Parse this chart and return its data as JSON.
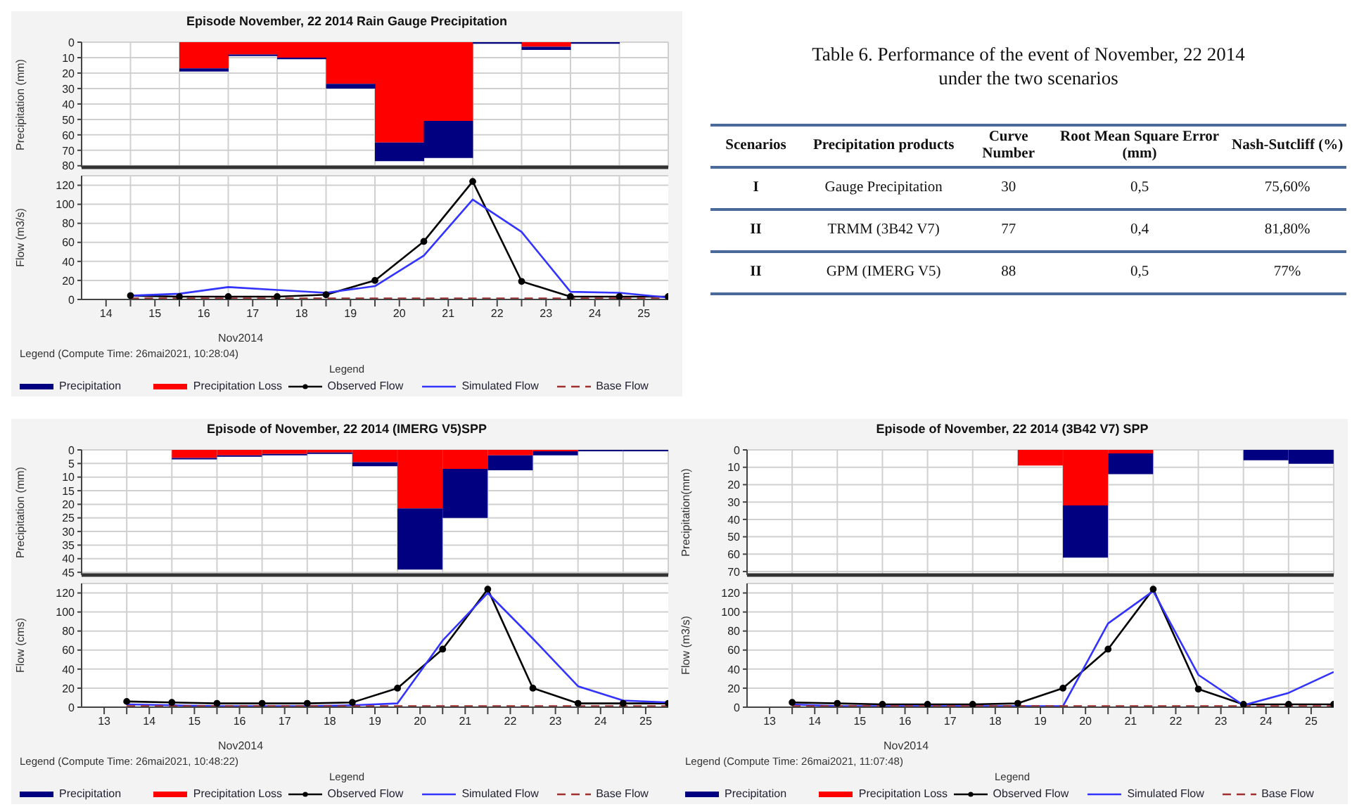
{
  "chart_data": [
    {
      "type": "bar",
      "title": "Episode November, 22 2014 Rain Gauge Precipitation",
      "ylabel": "Precipitation (mm)",
      "categories": [
        "14",
        "15",
        "16",
        "17",
        "18",
        "19",
        "20",
        "21",
        "22",
        "23",
        "24",
        "25"
      ],
      "stacked": true,
      "ylim": [
        81,
        0
      ],
      "yticks": [
        0,
        10,
        20,
        30,
        40,
        50,
        60,
        70,
        80
      ],
      "grid": true,
      "tick_labels": "y",
      "legend": "bottom",
      "series": [
        {
          "name": "Precipitation Loss",
          "color": "#ff0000",
          "values": [
            0,
            0,
            17,
            8,
            10,
            27,
            65,
            51,
            0,
            3,
            0,
            0
          ]
        },
        {
          "name": "Precipitation",
          "color": "#000080",
          "values": [
            0,
            0,
            2,
            1,
            1,
            3,
            12,
            24,
            1,
            2,
            1,
            0
          ]
        }
      ]
    },
    {
      "type": "line",
      "xlabel": "Nov2014",
      "ylabel": "Flow (m3/s)",
      "x": [
        14.5,
        15.5,
        16.5,
        17.5,
        18.5,
        19.5,
        20.5,
        21.5,
        22.5,
        23.5,
        24.5,
        25.5
      ],
      "xlim": [
        13.5,
        25.5
      ],
      "xticks": [
        14,
        {
          "value": 14.5,
          "label": null
        },
        15,
        {
          "value": 15.5,
          "label": null
        },
        16,
        {
          "value": 16.5,
          "label": null
        },
        17,
        {
          "value": 17.5,
          "label": null
        },
        18,
        {
          "value": 18.5,
          "label": null
        },
        19,
        {
          "value": 19.5,
          "label": null
        },
        20,
        {
          "value": 20.5,
          "label": null
        },
        21,
        {
          "value": 21.5,
          "label": null
        },
        22,
        {
          "value": 22.5,
          "label": null
        },
        23,
        {
          "value": 23.5,
          "label": null
        },
        24,
        {
          "value": 24.5,
          "label": null
        },
        25
      ],
      "ylim": [
        0,
        130
      ],
      "yticks": [
        0,
        20,
        40,
        60,
        80,
        100,
        120
      ],
      "grid": true,
      "legend": "bottom",
      "legend_title": "Legend",
      "annotations": [
        "Legend (Compute Time: 26mai2021, 10:28:04)"
      ],
      "series": [
        {
          "name": "Observed Flow",
          "color": "#000000",
          "marker": "circle",
          "values": [
            4,
            3,
            3,
            3,
            5,
            20,
            61,
            124,
            19,
            3,
            3,
            3
          ]
        },
        {
          "name": "Simulated Flow",
          "color": "#3333ff",
          "marker": "none",
          "values": [
            4,
            6,
            13,
            10,
            7,
            14,
            46,
            105,
            71,
            8,
            7,
            2
          ]
        },
        {
          "name": "Base Flow",
          "color": "#a03030",
          "marker": "none",
          "line_style": "dashed",
          "values": [
            1,
            1,
            1,
            1,
            1,
            1,
            1,
            1,
            1,
            1,
            1,
            1
          ]
        }
      ]
    },
    {
      "type": "other",
      "title": "Table 6. Performance of the event of November, 22 2014 under the two scenarios",
      "annotations": [
        "Scenarios",
        "Precipitation products",
        "Curve Number",
        "Root Mean Square Error (mm)",
        "Nash-Sutcliff (%)",
        "I",
        "Gauge Precipitation",
        "30",
        "0,5",
        "75,60%",
        "II",
        "TRMM (3B42 V7)",
        "77",
        "0,4",
        "81,80%",
        "II",
        "GPM (IMERG V5)",
        "88",
        "0,5",
        "77%"
      ]
    },
    {
      "type": "bar",
      "title": "Episode of November, 22 2014 (IMERG V5)SPP",
      "ylabel": "Precipitation (mm)",
      "categories": [
        "13",
        "14",
        "15",
        "16",
        "17",
        "18",
        "19",
        "20",
        "21",
        "22",
        "23",
        "24",
        "25"
      ],
      "stacked": true,
      "ylim": [
        46,
        0
      ],
      "yticks": [
        0,
        5,
        10,
        15,
        20,
        25,
        30,
        35,
        40,
        45
      ],
      "grid": true,
      "tick_labels": "y",
      "legend": "bottom",
      "series": [
        {
          "name": "Precipitation Loss",
          "color": "#ff0000",
          "values": [
            0,
            0,
            3,
            2,
            1.5,
            1,
            4.5,
            21.5,
            7,
            2,
            0.5,
            0,
            0
          ]
        },
        {
          "name": "Precipitation",
          "color": "#000080",
          "values": [
            0,
            0,
            0.5,
            0.5,
            0.5,
            0.5,
            1.5,
            22.5,
            18,
            5.5,
            1.5,
            0.5,
            0.5
          ]
        }
      ]
    },
    {
      "type": "line",
      "xlabel": "Nov2014",
      "ylabel": "Flow (cms)",
      "x": [
        13.5,
        14.5,
        15.5,
        16.5,
        17.5,
        18.5,
        19.5,
        20.5,
        21.5,
        22.5,
        23.5,
        24.5,
        25.5
      ],
      "xlim": [
        12.5,
        25.5
      ],
      "xticks": [
        13,
        {
          "value": 13.5,
          "label": null
        },
        14,
        {
          "value": 14.5,
          "label": null
        },
        15,
        {
          "value": 15.5,
          "label": null
        },
        16,
        {
          "value": 16.5,
          "label": null
        },
        17,
        {
          "value": 17.5,
          "label": null
        },
        18,
        {
          "value": 18.5,
          "label": null
        },
        19,
        {
          "value": 19.5,
          "label": null
        },
        20,
        {
          "value": 20.5,
          "label": null
        },
        21,
        {
          "value": 21.5,
          "label": null
        },
        22,
        {
          "value": 22.5,
          "label": null
        },
        23,
        {
          "value": 23.5,
          "label": null
        },
        24,
        {
          "value": 24.5,
          "label": null
        },
        25
      ],
      "ylim": [
        0,
        130
      ],
      "yticks": [
        0,
        20,
        40,
        60,
        80,
        100,
        120
      ],
      "grid": true,
      "legend": "bottom",
      "legend_title": "Legend",
      "annotations": [
        "Legend (Compute Time: 26mai2021, 10:48:22)"
      ],
      "series": [
        {
          "name": "Observed Flow",
          "color": "#000000",
          "marker": "circle",
          "values": [
            6,
            5,
            4,
            4,
            4,
            5,
            20,
            61,
            124,
            20,
            4,
            4,
            4
          ]
        },
        {
          "name": "Simulated Flow",
          "color": "#3333ff",
          "marker": "none",
          "values": [
            3,
            2,
            1,
            1,
            1,
            2,
            4,
            70,
            120,
            72,
            22,
            7,
            5
          ]
        },
        {
          "name": "Base Flow",
          "color": "#a03030",
          "marker": "none",
          "line_style": "dashed",
          "values": [
            1,
            1,
            1,
            1,
            1,
            1,
            1,
            1,
            1,
            1,
            1,
            1,
            1
          ]
        }
      ]
    },
    {
      "type": "bar",
      "title": "Episode of November, 22 2014 (3B42 V7) SPP",
      "ylabel": "Precipitation(mm)",
      "categories": [
        "13",
        "14",
        "15",
        "16",
        "17",
        "18",
        "19",
        "20",
        "21",
        "22",
        "23",
        "24",
        "25"
      ],
      "stacked": true,
      "ylim": [
        72,
        0
      ],
      "yticks": [
        0,
        10,
        20,
        30,
        40,
        50,
        60,
        70
      ],
      "grid": true,
      "tick_labels": "y",
      "legend": "bottom",
      "series": [
        {
          "name": "Precipitation Loss",
          "color": "#ff0000",
          "values": [
            0,
            0,
            0,
            0,
            0,
            0,
            9,
            32,
            2,
            0,
            0,
            0,
            0
          ]
        },
        {
          "name": "Precipitation",
          "color": "#000080",
          "values": [
            0,
            0,
            0,
            0,
            0,
            0,
            0,
            30,
            12,
            0,
            0,
            6,
            8
          ]
        }
      ]
    },
    {
      "type": "line",
      "xlabel": "Nov2014",
      "ylabel": "Flow (m3/s)",
      "x": [
        13.5,
        14.5,
        15.5,
        16.5,
        17.5,
        18.5,
        19.5,
        20.5,
        21.5,
        22.5,
        23.5,
        24.5,
        25.5
      ],
      "xlim": [
        12.5,
        25.5
      ],
      "xticks": [
        13,
        {
          "value": 13.5,
          "label": null
        },
        14,
        {
          "value": 14.5,
          "label": null
        },
        15,
        {
          "value": 15.5,
          "label": null
        },
        16,
        {
          "value": 16.5,
          "label": null
        },
        17,
        {
          "value": 17.5,
          "label": null
        },
        18,
        {
          "value": 18.5,
          "label": null
        },
        19,
        {
          "value": 19.5,
          "label": null
        },
        20,
        {
          "value": 20.5,
          "label": null
        },
        21,
        {
          "value": 21.5,
          "label": null
        },
        22,
        {
          "value": 22.5,
          "label": null
        },
        23,
        {
          "value": 23.5,
          "label": null
        },
        24,
        {
          "value": 24.5,
          "label": null
        },
        25
      ],
      "ylim": [
        0,
        130
      ],
      "yticks": [
        0,
        20,
        40,
        60,
        80,
        100,
        120
      ],
      "grid": true,
      "legend": "bottom",
      "legend_title": "Legend",
      "annotations": [
        "Legend (Compute Time: 26mai2021, 11:07:48)"
      ],
      "series": [
        {
          "name": "Observed Flow",
          "color": "#000000",
          "marker": "circle",
          "values": [
            5,
            4,
            3,
            3,
            3,
            4,
            20,
            61,
            124,
            19,
            3,
            3,
            3
          ]
        },
        {
          "name": "Simulated Flow",
          "color": "#3333ff",
          "marker": "none",
          "values": [
            3,
            1,
            1,
            1,
            1,
            1,
            1,
            88,
            122,
            34,
            2,
            15,
            37
          ]
        },
        {
          "name": "Base Flow",
          "color": "#a03030",
          "marker": "none",
          "line_style": "dashed",
          "values": [
            1,
            1,
            1,
            1,
            1,
            1,
            1,
            1,
            1,
            1,
            1,
            1,
            1
          ]
        }
      ]
    }
  ]
}
